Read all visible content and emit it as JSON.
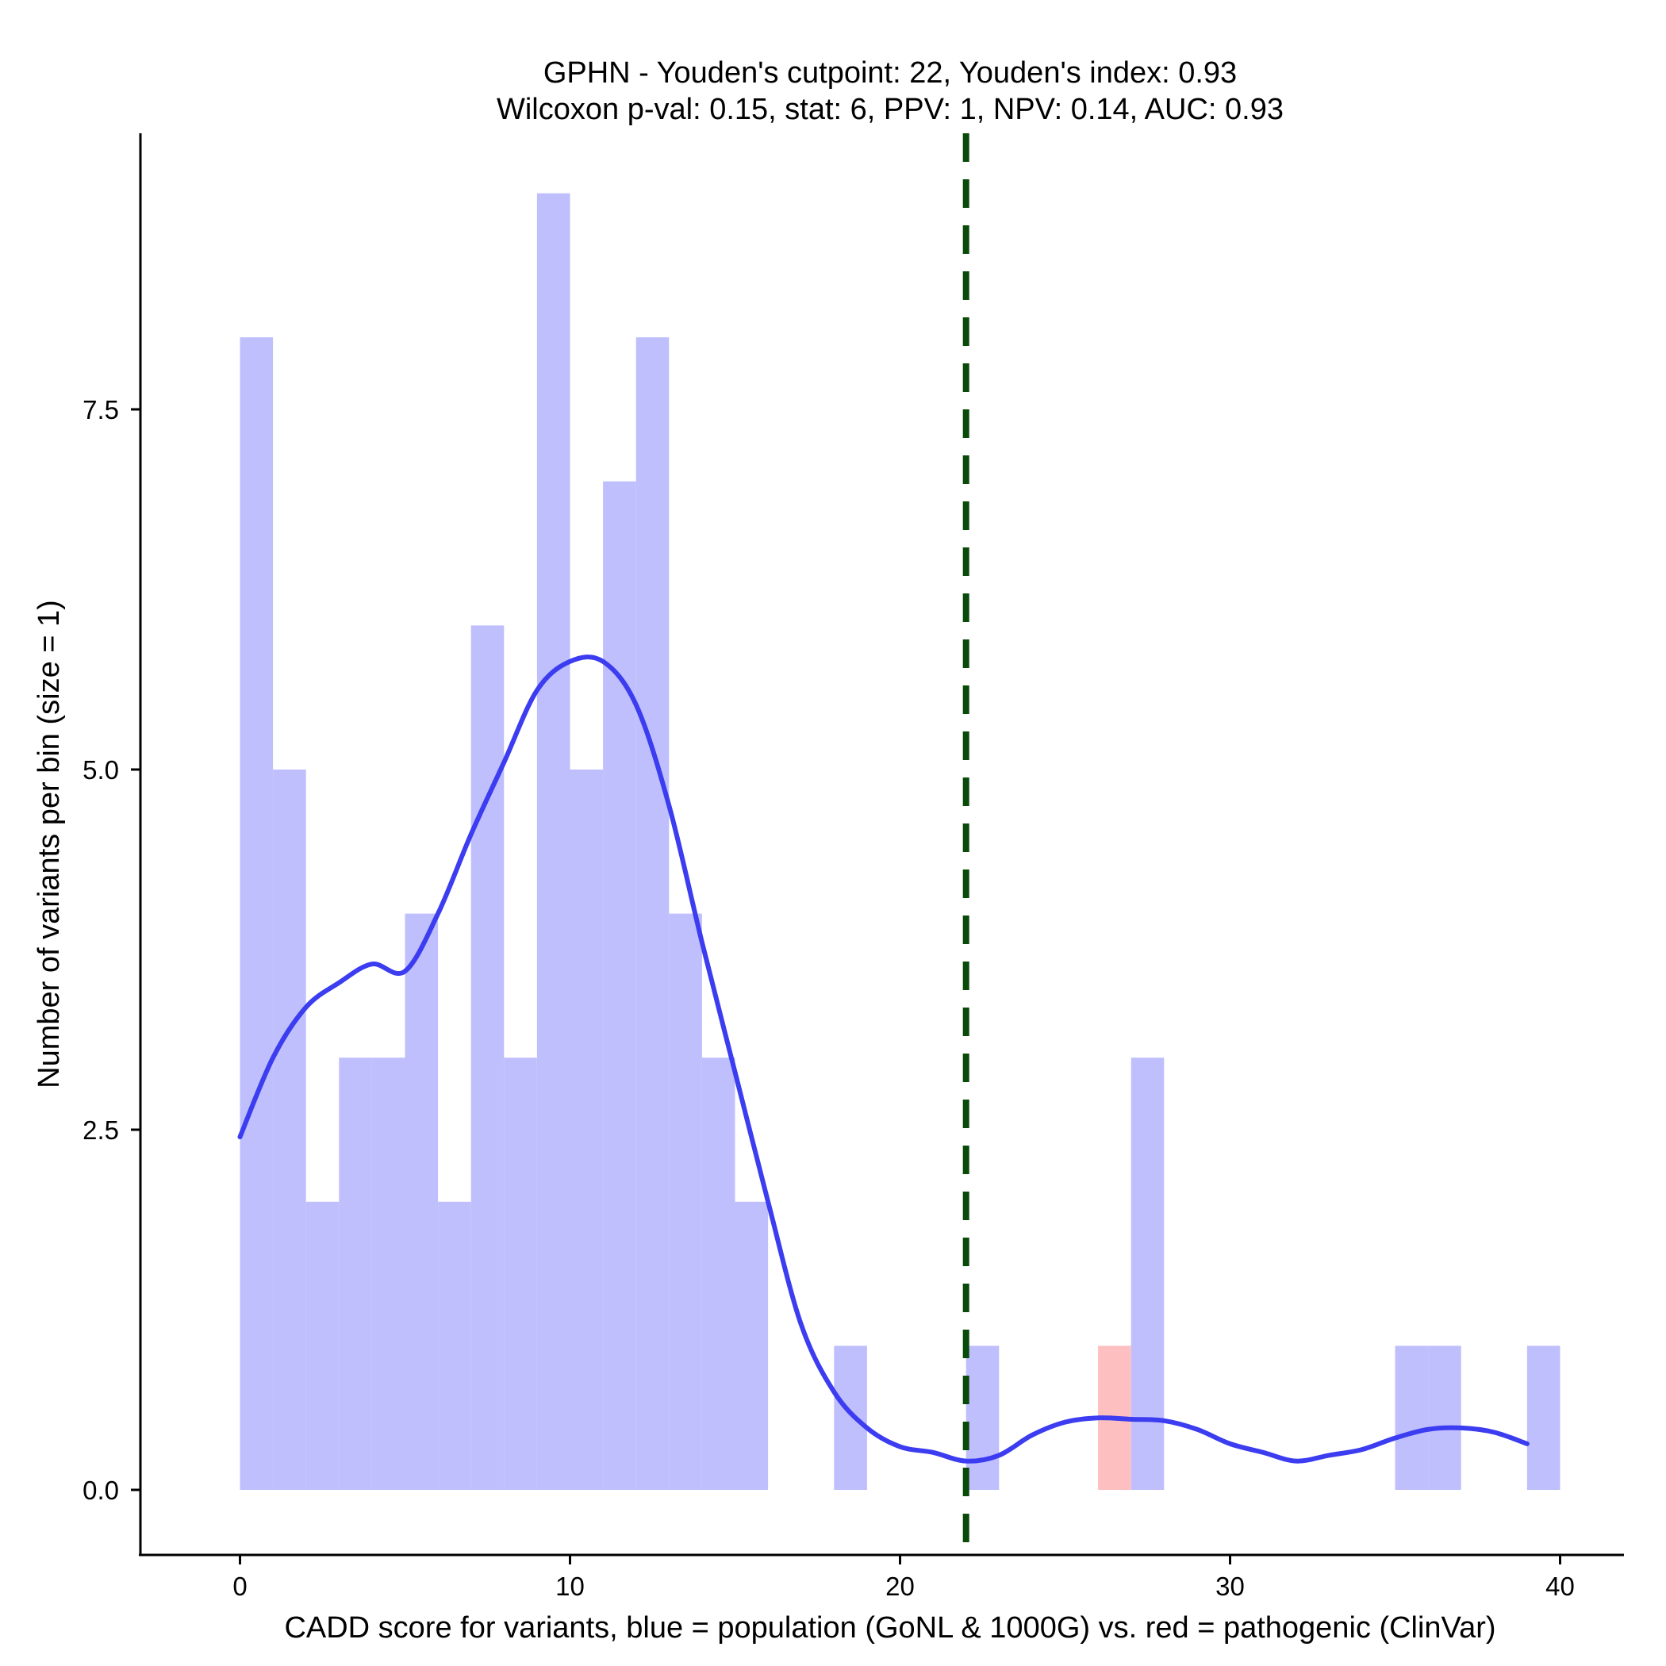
{
  "chart_data": {
    "type": "bar",
    "title": "GPHN - Youden's cutpoint: 22, Youden's index: 0.93",
    "subtitle": "Wilcoxon p-val: 0.15, stat: 6, PPV: 1, NPV: 0.14, AUC: 0.93",
    "xlabel": "CADD score for variants, blue = population (GoNL & 1000G) vs. red = pathogenic (ClinVar)",
    "ylabel": "Number of variants per bin (size = 1)",
    "xlim": [
      -3,
      42
    ],
    "ylim": [
      -0.3,
      9.5
    ],
    "xticks": [
      0,
      10,
      20,
      30,
      40
    ],
    "xtick_labels": [
      "0",
      "10",
      "20",
      "30",
      "40"
    ],
    "yticks": [
      0,
      2.5,
      5,
      7.5
    ],
    "ytick_labels": [
      "0.0",
      "2.5",
      "5.0",
      "7.5"
    ],
    "bin_width": 1,
    "series": [
      {
        "name": "population (GoNL & 1000G)",
        "color": "#bfbffd",
        "bins": [
          {
            "x0": 0,
            "count": 8
          },
          {
            "x0": 1,
            "count": 5
          },
          {
            "x0": 2,
            "count": 2
          },
          {
            "x0": 3,
            "count": 3
          },
          {
            "x0": 4,
            "count": 3
          },
          {
            "x0": 5,
            "count": 4
          },
          {
            "x0": 6,
            "count": 2
          },
          {
            "x0": 7,
            "count": 6
          },
          {
            "x0": 8,
            "count": 3
          },
          {
            "x0": 9,
            "count": 9
          },
          {
            "x0": 10,
            "count": 5
          },
          {
            "x0": 11,
            "count": 7
          },
          {
            "x0": 12,
            "count": 8
          },
          {
            "x0": 13,
            "count": 4
          },
          {
            "x0": 14,
            "count": 3
          },
          {
            "x0": 15,
            "count": 2
          },
          {
            "x0": 18,
            "count": 1
          },
          {
            "x0": 22,
            "count": 1
          },
          {
            "x0": 27,
            "count": 3
          },
          {
            "x0": 35,
            "count": 1
          },
          {
            "x0": 36,
            "count": 1
          },
          {
            "x0": 39,
            "count": 1
          }
        ]
      },
      {
        "name": "pathogenic (ClinVar)",
        "color": "#fdbfbf",
        "bins": [
          {
            "x0": 26,
            "count": 1
          }
        ]
      }
    ],
    "density_curve": {
      "color": "#3c3cf0",
      "points": [
        [
          0,
          2.45
        ],
        [
          1,
          3.0
        ],
        [
          2,
          3.35
        ],
        [
          3,
          3.52
        ],
        [
          4,
          3.65
        ],
        [
          5,
          3.6
        ],
        [
          6,
          4.0
        ],
        [
          7,
          4.55
        ],
        [
          8,
          5.05
        ],
        [
          9,
          5.55
        ],
        [
          10,
          5.75
        ],
        [
          11,
          5.75
        ],
        [
          12,
          5.45
        ],
        [
          13,
          4.75
        ],
        [
          14,
          3.8
        ],
        [
          15,
          2.9
        ],
        [
          16,
          2.0
        ],
        [
          17,
          1.15
        ],
        [
          18,
          0.68
        ],
        [
          19,
          0.43
        ],
        [
          20,
          0.3
        ],
        [
          21,
          0.26
        ],
        [
          22,
          0.2
        ],
        [
          23,
          0.24
        ],
        [
          24,
          0.38
        ],
        [
          25,
          0.47
        ],
        [
          26,
          0.5
        ],
        [
          27,
          0.49
        ],
        [
          28,
          0.48
        ],
        [
          29,
          0.42
        ],
        [
          30,
          0.32
        ],
        [
          31,
          0.26
        ],
        [
          32,
          0.2
        ],
        [
          33,
          0.24
        ],
        [
          34,
          0.28
        ],
        [
          35,
          0.36
        ],
        [
          36,
          0.42
        ],
        [
          37,
          0.43
        ],
        [
          38,
          0.4
        ],
        [
          39,
          0.32
        ]
      ]
    },
    "cutpoint": {
      "x": 22,
      "color": "#0a4a0a",
      "style": "dashed"
    }
  }
}
